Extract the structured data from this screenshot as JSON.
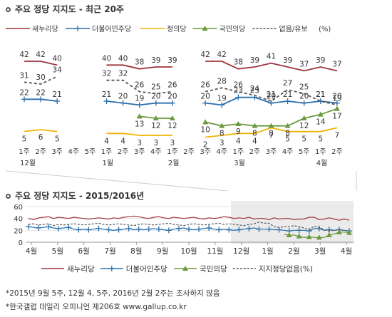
{
  "chart_data": [
    {
      "type": "line",
      "title": "주요 정당 지지도 - 최근 20주",
      "legend_position": "top",
      "legend_unit": "(%)",
      "segments": [
        {
          "weeks": [
            "1주",
            "2주",
            "3주"
          ],
          "month_label": "12월"
        },
        {
          "weeks": [
            "4주",
            "5주"
          ],
          "month_label": ""
        },
        {
          "weeks": [
            "1주",
            "2주",
            "3주",
            "4주"
          ],
          "month_label": "1월"
        },
        {
          "weeks": [
            "1주",
            "2주"
          ],
          "month_label": "2월"
        },
        {
          "weeks": [
            "3주",
            "4주"
          ],
          "month_label": ""
        },
        {
          "weeks": [
            "1주",
            "2주",
            "3주",
            "4주",
            "5주"
          ],
          "month_label": "3월"
        },
        {
          "weeks": [
            "1주",
            "2주"
          ],
          "month_label": "4월"
        }
      ],
      "series": [
        {
          "name": "새누리당",
          "color": "#a0333a",
          "style": "solid",
          "marker": "none",
          "values": [
            42,
            42,
            40,
            null,
            null,
            40,
            40,
            38,
            39,
            39,
            null,
            42,
            42,
            38,
            39,
            41,
            39,
            37,
            39,
            37
          ]
        },
        {
          "name": "더불어민주당",
          "color": "#2a6fad",
          "style": "solid",
          "marker": "plus",
          "values": [
            22,
            22,
            21,
            null,
            null,
            21,
            20,
            19,
            20,
            20,
            null,
            20,
            19,
            23,
            23,
            20,
            21,
            20,
            21,
            20
          ]
        },
        {
          "name": "정의당",
          "color": "#f0b400",
          "style": "solid",
          "marker": "none",
          "values": [
            5,
            6,
            5,
            null,
            null,
            4,
            4,
            3,
            3,
            3,
            null,
            2,
            3,
            4,
            4,
            7,
            5,
            5,
            5,
            7
          ]
        },
        {
          "name": "국민의당",
          "color": "#6b9a3e",
          "style": "solid",
          "marker": "triangle",
          "values": [
            null,
            null,
            null,
            null,
            null,
            null,
            null,
            13,
            12,
            12,
            null,
            10,
            8,
            9,
            8,
            8,
            8,
            12,
            14,
            17
          ]
        },
        {
          "name": "없음/유보",
          "color": "#555555",
          "style": "dashed",
          "marker": "none",
          "values": [
            31,
            30,
            34,
            null,
            null,
            32,
            32,
            26,
            25,
            26,
            null,
            26,
            28,
            26,
            24,
            21,
            27,
            25,
            21,
            19
          ]
        }
      ],
      "data_labels": [
        {
          "series": 0,
          "labels": [
            "42",
            "42",
            "40",
            "",
            "",
            "40",
            "40",
            "38",
            "39",
            "39",
            "",
            "42",
            "42",
            "38",
            "39",
            "41",
            "39",
            "37",
            "39",
            "37"
          ]
        },
        {
          "series": 1,
          "labels": [
            "22",
            "22",
            "21",
            "",
            "",
            "21",
            "20",
            "19",
            "20",
            "20",
            "",
            "20",
            "19",
            "23",
            "23",
            "20",
            "21",
            "20",
            "21",
            "20"
          ]
        },
        {
          "series": 2,
          "labels": [
            "5",
            "6",
            "5",
            "",
            "",
            "4",
            "4",
            "3",
            "3",
            "3",
            "",
            "2",
            "3",
            "4",
            "4",
            "7",
            "5",
            "5",
            "5",
            "7"
          ]
        },
        {
          "series": 3,
          "labels": [
            "",
            "",
            "",
            "",
            "",
            "",
            "",
            "13",
            "12",
            "12",
            "",
            "10",
            "8",
            "9",
            "8",
            "8",
            "8",
            "12",
            "14",
            "17"
          ]
        },
        {
          "series": 4,
          "labels": [
            "31",
            "30",
            "34",
            "",
            "",
            "32",
            "32",
            "26",
            "25",
            "26",
            "",
            "26",
            "28",
            "26",
            "24",
            "21",
            "27",
            "25",
            "21",
            "19"
          ]
        }
      ]
    },
    {
      "type": "line",
      "title": "주요 정당 지지도 - 2015/2016년",
      "y_ticks": [
        "60",
        "40",
        "20",
        "0"
      ],
      "ylim": [
        0,
        60
      ],
      "months": [
        "4월",
        "5월",
        "6월",
        "7월",
        "8월",
        "9월",
        "10월",
        "11월",
        "12월",
        "1월",
        "2월",
        "3월",
        "4월"
      ],
      "legend_position": "bottom",
      "series": [
        {
          "name": "새누리당",
          "color": "#a0333a",
          "style": "solid",
          "values": [
            40,
            38,
            41,
            42,
            43,
            40,
            42,
            41,
            40,
            42,
            41,
            40,
            39,
            40,
            41,
            40,
            39,
            41,
            40,
            42,
            43,
            44,
            43,
            41,
            40,
            42,
            43,
            41,
            40,
            42,
            41,
            40,
            41,
            42,
            40,
            39,
            41,
            40,
            41,
            43,
            42,
            40,
            41,
            40,
            42,
            39,
            40,
            40,
            38,
            41,
            39,
            40,
            40,
            38,
            39,
            39,
            42,
            42,
            38,
            39,
            41,
            39,
            37,
            39,
            37
          ]
        },
        {
          "name": "더불어민주당",
          "color": "#2a6fad",
          "style": "solid",
          "marker": "plus",
          "values": [
            26,
            25,
            24,
            25,
            26,
            24,
            23,
            24,
            25,
            22,
            21,
            22,
            21,
            22,
            23,
            22,
            21,
            20,
            21,
            22,
            23,
            21,
            22,
            21,
            22,
            23,
            22,
            21,
            20,
            22,
            23,
            24,
            22,
            21,
            22,
            23,
            24,
            22,
            21,
            22,
            21,
            20,
            21,
            22,
            23,
            24,
            22,
            22,
            22,
            21,
            21,
            20,
            19,
            20,
            20,
            20,
            19,
            23,
            23,
            20,
            21,
            20,
            21,
            20,
            19
          ]
        },
        {
          "name": "국민의당",
          "color": "#6b9a3e",
          "style": "solid",
          "marker": "triangle",
          "values": [
            null,
            null,
            null,
            null,
            null,
            null,
            null,
            null,
            null,
            null,
            null,
            null,
            null,
            null,
            null,
            null,
            null,
            null,
            null,
            null,
            null,
            null,
            null,
            null,
            null,
            null,
            null,
            null,
            null,
            null,
            null,
            null,
            null,
            null,
            null,
            null,
            null,
            null,
            null,
            null,
            null,
            null,
            null,
            null,
            null,
            null,
            null,
            null,
            null,
            null,
            null,
            13,
            12,
            12,
            10,
            8,
            9,
            8,
            8,
            8,
            12,
            14,
            17,
            17,
            16
          ]
        },
        {
          "name": "지지정당없음(%)",
          "color": "#555555",
          "style": "dashed",
          "values": [
            30,
            31,
            29,
            30,
            31,
            28,
            30,
            29,
            30,
            31,
            30,
            29,
            30,
            31,
            32,
            30,
            29,
            30,
            31,
            30,
            29,
            28,
            30,
            31,
            30,
            29,
            30,
            31,
            32,
            30,
            29,
            28,
            30,
            31,
            30,
            29,
            30,
            31,
            32,
            30,
            31,
            30,
            29,
            28,
            30,
            31,
            34,
            32,
            32,
            26,
            25,
            26,
            26,
            28,
            26,
            24,
            21,
            27,
            25,
            21,
            19,
            20,
            21,
            20,
            19
          ]
        }
      ]
    }
  ],
  "notes": {
    "line1": "*2015년 9월 5주, 12월 4, 5주, 2016년 2월 2주는 조사하지 않음",
    "line2": "*한국갤럽 데일리 오피니언 제206호 www.gallup.co.kr"
  }
}
